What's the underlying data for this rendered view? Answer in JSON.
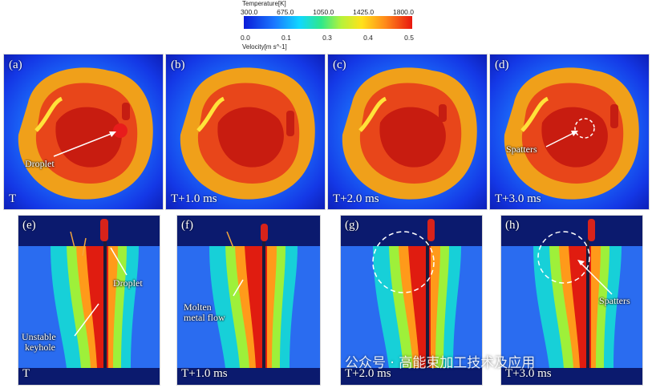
{
  "legend": {
    "temperature_title": "Temperature[K]",
    "temperature_ticks": [
      "300.0",
      "675.0",
      "1050.0",
      "1425.0",
      "1800.0"
    ],
    "velocity_ticks": [
      "0.0",
      "0.1",
      "0.3",
      "0.4",
      "0.5"
    ],
    "velocity_title": "Velocity[m s^-1]"
  },
  "panels": [
    {
      "id": "a",
      "label": "(a)",
      "time": "T",
      "annotation": "Droplet"
    },
    {
      "id": "b",
      "label": "(b)",
      "time": "T+1.0 ms",
      "annotation": ""
    },
    {
      "id": "c",
      "label": "(c)",
      "time": "T+2.0 ms",
      "annotation": ""
    },
    {
      "id": "d",
      "label": "(d)",
      "time": "T+3.0 ms",
      "annotation": "Spatters"
    },
    {
      "id": "e",
      "label": "(e)",
      "time": "T",
      "annotations": [
        "Droplet",
        "Unstable",
        "keyhole"
      ]
    },
    {
      "id": "f",
      "label": "(f)",
      "time": "T+1.0 ms",
      "annotations": [
        "Molten",
        "metal flow"
      ]
    },
    {
      "id": "g",
      "label": "(g)",
      "time": "T+2.0 ms",
      "annotations": []
    },
    {
      "id": "h",
      "label": "(h)",
      "time": "T+3.0 ms",
      "annotations": [
        "Spatters"
      ]
    }
  ],
  "watermark": "公众号 · 高能束加工技术及应用"
}
